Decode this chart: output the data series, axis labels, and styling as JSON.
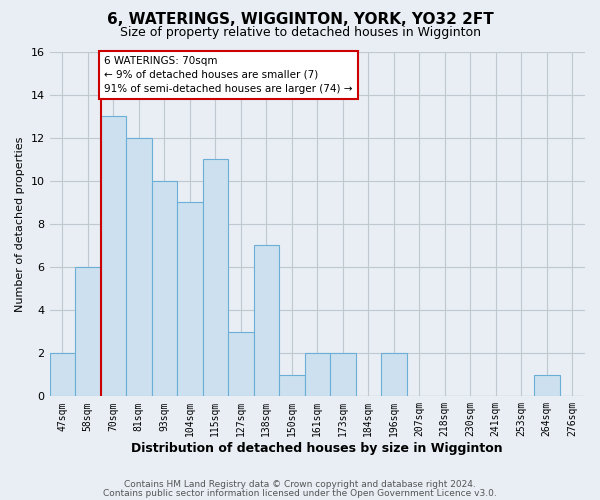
{
  "title": "6, WATERINGS, WIGGINTON, YORK, YO32 2FT",
  "subtitle": "Size of property relative to detached houses in Wigginton",
  "xlabel": "Distribution of detached houses by size in Wigginton",
  "ylabel": "Number of detached properties",
  "footer_line1": "Contains HM Land Registry data © Crown copyright and database right 2024.",
  "footer_line2": "Contains public sector information licensed under the Open Government Licence v3.0.",
  "bin_labels": [
    "47sqm",
    "58sqm",
    "70sqm",
    "81sqm",
    "93sqm",
    "104sqm",
    "115sqm",
    "127sqm",
    "138sqm",
    "150sqm",
    "161sqm",
    "173sqm",
    "184sqm",
    "196sqm",
    "207sqm",
    "218sqm",
    "230sqm",
    "241sqm",
    "253sqm",
    "264sqm",
    "276sqm"
  ],
  "bar_heights": [
    2,
    6,
    13,
    12,
    10,
    9,
    11,
    3,
    7,
    1,
    2,
    2,
    0,
    2,
    0,
    0,
    0,
    0,
    0,
    1,
    0
  ],
  "bar_fill_color": "#cce0f0",
  "bar_edge_color": "#6baed6",
  "vline_index": 2,
  "vline_color": "#cc0000",
  "annotation_title": "6 WATERINGS: 70sqm",
  "annotation_line1": "← 9% of detached houses are smaller (7)",
  "annotation_line2": "91% of semi-detached houses are larger (74) →",
  "annotation_box_facecolor": "white",
  "annotation_box_edgecolor": "#cc0000",
  "ylim": [
    0,
    16
  ],
  "yticks": [
    0,
    2,
    4,
    6,
    8,
    10,
    12,
    14,
    16
  ],
  "background_color": "#e8eef4",
  "plot_background_color": "#e8eef4",
  "grid_color": "#c0c8d0",
  "title_fontsize": 11,
  "subtitle_fontsize": 9
}
